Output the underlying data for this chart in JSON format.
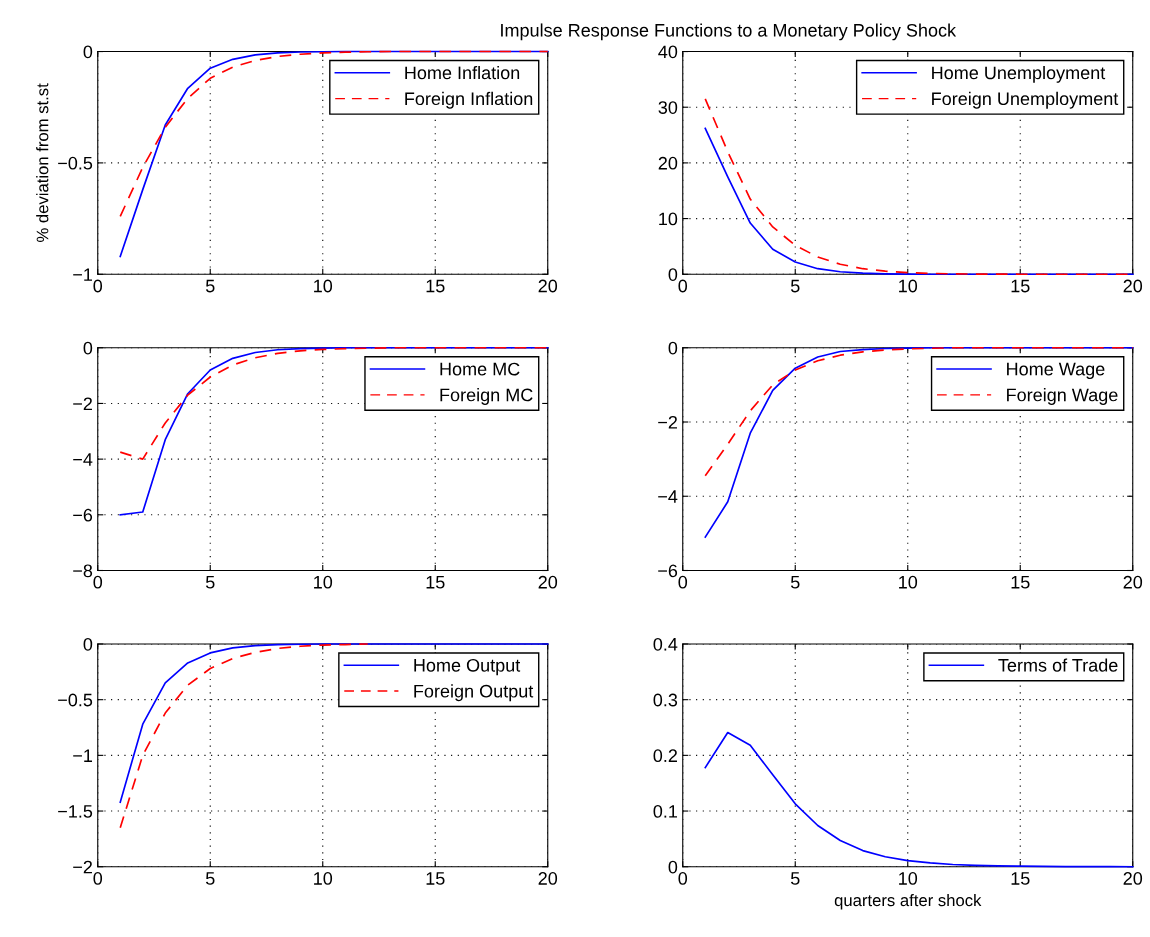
{
  "chart_data": [
    {
      "type": "line",
      "ylabel": "% deviation from st.st",
      "x": [
        1,
        2,
        3,
        4,
        5,
        6,
        7,
        8,
        9,
        10,
        11,
        12,
        13,
        14,
        15,
        16,
        17,
        18,
        19,
        20
      ],
      "xlim": [
        0,
        20
      ],
      "xticks": [
        0,
        5,
        10,
        15,
        20
      ],
      "ylim": [
        -1,
        0
      ],
      "yticks": [
        -1,
        -0.5,
        0
      ],
      "grid": true,
      "legend": "top right",
      "series": [
        {
          "name": "Home Inflation",
          "color": "#0000ff",
          "line_style": "solid",
          "values": [
            -0.92,
            -0.62,
            -0.33,
            -0.165,
            -0.075,
            -0.035,
            -0.015,
            -0.006,
            -0.002,
            -0.001,
            0,
            0,
            0,
            0,
            0,
            0,
            0,
            0,
            0,
            0
          ]
        },
        {
          "name": "Foreign Inflation",
          "color": "#ff0000",
          "line_style": "dashed",
          "values": [
            -0.74,
            -0.52,
            -0.34,
            -0.21,
            -0.12,
            -0.07,
            -0.04,
            -0.022,
            -0.012,
            -0.006,
            -0.003,
            -0.001,
            0,
            0,
            0,
            0,
            0,
            0,
            0,
            0
          ]
        }
      ]
    },
    {
      "type": "line",
      "title": "Impulse Response Functions to a Monetary Policy Shock",
      "x": [
        1,
        2,
        3,
        4,
        5,
        6,
        7,
        8,
        9,
        10,
        11,
        12,
        13,
        14,
        15,
        16,
        17,
        18,
        19,
        20
      ],
      "xlim": [
        0,
        20
      ],
      "xticks": [
        0,
        5,
        10,
        15,
        20
      ],
      "ylim": [
        0,
        40
      ],
      "yticks": [
        0,
        10,
        20,
        30,
        40
      ],
      "grid": true,
      "legend": "top right",
      "series": [
        {
          "name": "Home Unemployment",
          "color": "#0000ff",
          "line_style": "solid",
          "values": [
            26.2,
            17.5,
            9.2,
            4.5,
            2.2,
            1.0,
            0.45,
            0.2,
            0.08,
            0.03,
            0.01,
            0,
            0,
            0,
            0,
            0,
            0,
            0,
            0,
            0
          ]
        },
        {
          "name": "Foreign Unemployment",
          "color": "#ff0000",
          "line_style": "dashed",
          "values": [
            31.5,
            22,
            13.5,
            8.5,
            5.2,
            3.1,
            1.8,
            1.0,
            0.55,
            0.3,
            0.15,
            0.08,
            0.04,
            0.02,
            0.01,
            0,
            0,
            0,
            0,
            0
          ]
        }
      ]
    },
    {
      "type": "line",
      "x": [
        1,
        2,
        3,
        4,
        5,
        6,
        7,
        8,
        9,
        10,
        11,
        12,
        13,
        14,
        15,
        16,
        17,
        18,
        19,
        20
      ],
      "xlim": [
        0,
        20
      ],
      "xticks": [
        0,
        5,
        10,
        15,
        20
      ],
      "ylim": [
        -8,
        0
      ],
      "yticks": [
        -8,
        -6,
        -4,
        -2,
        0
      ],
      "grid": true,
      "legend": "top right",
      "series": [
        {
          "name": "Home MC",
          "color": "#0000ff",
          "line_style": "solid",
          "values": [
            -6.0,
            -5.9,
            -3.3,
            -1.65,
            -0.8,
            -0.38,
            -0.17,
            -0.07,
            -0.03,
            -0.01,
            0,
            0,
            0,
            0,
            0,
            0,
            0,
            0,
            0,
            0
          ]
        },
        {
          "name": "Foreign MC",
          "color": "#ff0000",
          "line_style": "dashed",
          "values": [
            -3.75,
            -4.0,
            -2.7,
            -1.7,
            -1.05,
            -0.62,
            -0.36,
            -0.2,
            -0.11,
            -0.06,
            -0.03,
            -0.015,
            0,
            0,
            0,
            0,
            0,
            0,
            0,
            0
          ]
        }
      ]
    },
    {
      "type": "line",
      "x": [
        1,
        2,
        3,
        4,
        5,
        6,
        7,
        8,
        9,
        10,
        11,
        12,
        13,
        14,
        15,
        16,
        17,
        18,
        19,
        20
      ],
      "xlim": [
        0,
        20
      ],
      "xticks": [
        0,
        5,
        10,
        15,
        20
      ],
      "ylim": [
        -6,
        0
      ],
      "yticks": [
        -6,
        -4,
        -2,
        0
      ],
      "grid": true,
      "legend": "top right",
      "series": [
        {
          "name": "Home Wage",
          "color": "#0000ff",
          "line_style": "solid",
          "values": [
            -5.1,
            -4.15,
            -2.3,
            -1.15,
            -0.55,
            -0.25,
            -0.1,
            -0.05,
            -0.02,
            -0.01,
            0,
            0,
            0,
            0,
            0,
            0,
            0,
            0,
            0,
            0
          ]
        },
        {
          "name": "Foreign Wage",
          "color": "#ff0000",
          "line_style": "dashed",
          "values": [
            -3.45,
            -2.6,
            -1.7,
            -1.0,
            -0.6,
            -0.35,
            -0.2,
            -0.11,
            -0.06,
            -0.03,
            -0.015,
            0,
            0,
            0,
            0,
            0,
            0,
            0,
            0,
            0
          ]
        }
      ]
    },
    {
      "type": "line",
      "x": [
        1,
        2,
        3,
        4,
        5,
        6,
        7,
        8,
        9,
        10,
        11,
        12,
        13,
        14,
        15,
        16,
        17,
        18,
        19,
        20
      ],
      "xlim": [
        0,
        20
      ],
      "xticks": [
        0,
        5,
        10,
        15,
        20
      ],
      "ylim": [
        -2,
        0
      ],
      "yticks": [
        -2,
        -1.5,
        -1,
        -0.5,
        0
      ],
      "grid": true,
      "legend": "top right",
      "series": [
        {
          "name": "Home Output",
          "color": "#0000ff",
          "line_style": "solid",
          "values": [
            -1.42,
            -0.72,
            -0.35,
            -0.17,
            -0.08,
            -0.035,
            -0.015,
            -0.006,
            -0.002,
            0,
            0,
            0,
            0,
            0,
            0,
            0,
            0,
            0,
            0,
            0
          ]
        },
        {
          "name": "Foreign Output",
          "color": "#ff0000",
          "line_style": "dashed",
          "values": [
            -1.65,
            -1.0,
            -0.62,
            -0.37,
            -0.22,
            -0.13,
            -0.075,
            -0.04,
            -0.02,
            -0.01,
            -0.005,
            0,
            null,
            null,
            null,
            null,
            null,
            null,
            null,
            null
          ]
        }
      ]
    },
    {
      "type": "line",
      "xlabel": "quarters after shock",
      "x": [
        1,
        2,
        3,
        4,
        5,
        6,
        7,
        8,
        9,
        10,
        11,
        12,
        13,
        14,
        15,
        16,
        17,
        18,
        19,
        20
      ],
      "xlim": [
        0,
        20
      ],
      "xticks": [
        0,
        5,
        10,
        15,
        20
      ],
      "ylim": [
        0,
        0.4
      ],
      "yticks": [
        0,
        0.1,
        0.2,
        0.3,
        0.4
      ],
      "grid": true,
      "legend": "top right",
      "series": [
        {
          "name": "Terms of Trade",
          "color": "#0000ff",
          "line_style": "solid",
          "values": [
            0.178,
            0.241,
            0.218,
            0.165,
            0.113,
            0.074,
            0.047,
            0.029,
            0.018,
            0.011,
            0.007,
            0.004,
            0.0025,
            0.0015,
            0.001,
            0.0005,
            0.0003,
            0.0002,
            0.0001,
            0
          ]
        }
      ]
    }
  ]
}
